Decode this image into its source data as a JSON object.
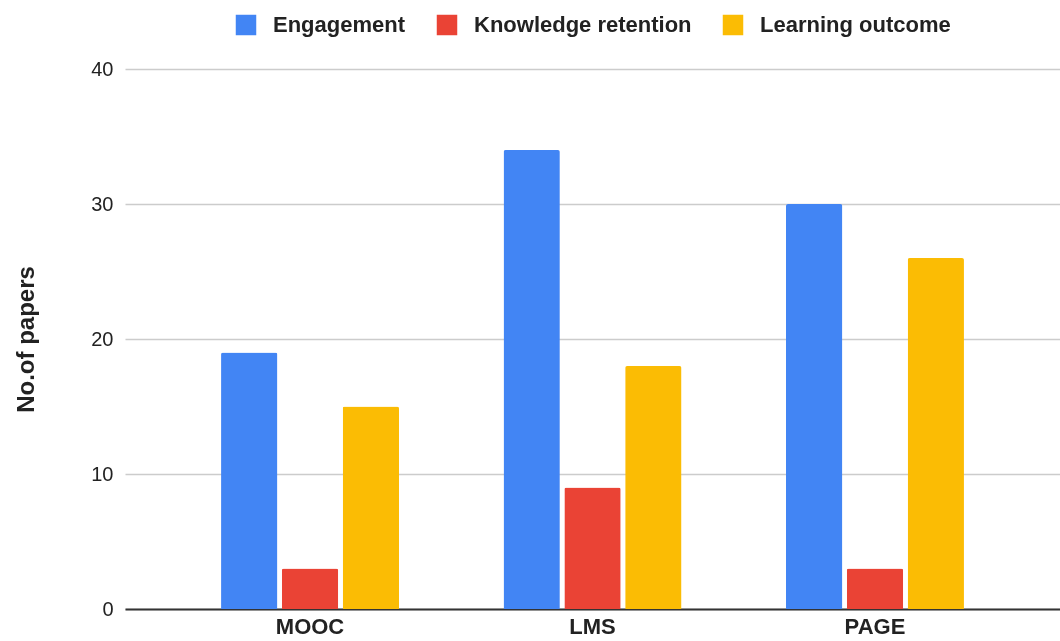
{
  "chart_data": {
    "type": "bar",
    "ylabel": "No.of papers",
    "categories": [
      "MOOC",
      "LMS",
      "PAGE"
    ],
    "series": [
      {
        "name": "Engagement",
        "color": "#4285f4",
        "values": [
          19,
          34,
          30
        ]
      },
      {
        "name": "Knowledge retention",
        "color": "#ea4335",
        "values": [
          3,
          9,
          3
        ]
      },
      {
        "name": "Learning outcome",
        "color": "#fbbc04",
        "values": [
          15,
          18,
          26
        ]
      }
    ],
    "ylim": [
      0,
      40
    ],
    "yticks": [
      0,
      10,
      20,
      30,
      40
    ],
    "grid": "y",
    "legend": "top"
  }
}
